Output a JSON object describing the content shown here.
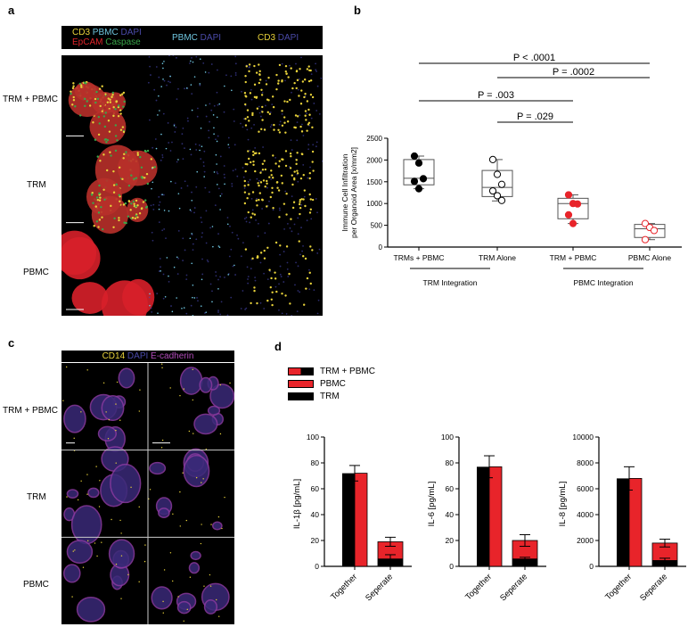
{
  "panels": {
    "a": {
      "letter": "a",
      "header": [
        {
          "parts": [
            {
              "text": "CD3",
              "color": "#e8d23a"
            },
            {
              "text": " PBMC",
              "color": "#6fc6e0"
            },
            {
              "text": " DAPI",
              "color": "#4a4aa8"
            }
          ],
          "line2": [
            {
              "text": "EpCAM",
              "color": "#e0242a"
            },
            {
              "text": " Caspase",
              "color": "#3aa64a"
            }
          ]
        },
        {
          "parts": [
            {
              "text": "PBMC",
              "color": "#6fc6e0"
            },
            {
              "text": " DAPI",
              "color": "#4a4aa8"
            }
          ]
        },
        {
          "parts": [
            {
              "text": "CD3",
              "color": "#e8d23a"
            },
            {
              "text": " DAPI",
              "color": "#4a4aa8"
            }
          ]
        }
      ],
      "rows": [
        "TRM + PBMC",
        "TRM",
        "PBMC"
      ]
    },
    "b": {
      "letter": "b",
      "group_labels": [
        "TRM Integration",
        "PBMC Integration"
      ],
      "pvalues": [
        "P < .0001",
        "P = .0002",
        "P = .003",
        "P = .029"
      ]
    },
    "c": {
      "letter": "c",
      "header": [
        {
          "text": "CD14",
          "color": "#e8d23a"
        },
        {
          "text": " DAPI",
          "color": "#4a4aa8"
        },
        {
          "text": " E-cadherin",
          "color": "#b04ab8"
        }
      ],
      "rows": [
        "TRM + PBMC",
        "TRM",
        "PBMC"
      ]
    },
    "d": {
      "letter": "d",
      "legend": [
        {
          "label": "TRM + PBMC",
          "swatch": "split"
        },
        {
          "label": "PBMC",
          "swatch": "#e8242a"
        },
        {
          "label": "TRM",
          "swatch": "#000000"
        }
      ]
    }
  },
  "colors": {
    "red": "#e8242a",
    "black": "#000000",
    "box": "#555555"
  },
  "chart_data": [
    {
      "type": "box",
      "panel": "b",
      "title": "",
      "ylabel": "Immune Cell Infiltration per Organoid Area [x/mm2]",
      "ylabel_lines": [
        "Immune Cell Infiltration",
        "per Organoid Area [x/mm2]"
      ],
      "ylim": [
        0,
        2500
      ],
      "yticks": [
        0,
        500,
        1000,
        1500,
        2000,
        2500
      ],
      "categories": [
        "TRMs + PBMC",
        "TRM Alone",
        "TRM + PBMC",
        "PBMC Alone"
      ],
      "groups": [
        {
          "label": "TRM Integration",
          "categories": [
            "TRMs + PBMC",
            "TRM Alone"
          ]
        },
        {
          "label": "PBMC Integration",
          "categories": [
            "TRM + PBMC",
            "PBMC Alone"
          ]
        }
      ],
      "series": [
        {
          "name": "TRMs + PBMC",
          "marker": "filled-black",
          "points": [
            2090,
            1930,
            1570,
            1510,
            1340
          ],
          "box": {
            "min": 1340,
            "q1": 1430,
            "median": 1580,
            "q3": 2010,
            "max": 2090
          }
        },
        {
          "name": "TRM Alone",
          "marker": "open-black",
          "points": [
            2010,
            1670,
            1440,
            1290,
            1180,
            1070
          ],
          "box": {
            "min": 1060,
            "q1": 1160,
            "median": 1370,
            "q3": 1760,
            "max": 2010
          }
        },
        {
          "name": "TRM + PBMC",
          "marker": "filled-red",
          "points": [
            1200,
            1000,
            990,
            740,
            540
          ],
          "box": {
            "min": 540,
            "q1": 650,
            "median": 1000,
            "q3": 1120,
            "max": 1200
          }
        },
        {
          "name": "PBMC Alone",
          "marker": "open-red",
          "points": [
            540,
            450,
            380,
            170
          ],
          "box": {
            "min": 170,
            "q1": 220,
            "median": 420,
            "q3": 520,
            "max": 540
          }
        }
      ],
      "comparisons": [
        {
          "from": "TRMs + PBMC",
          "to": "PBMC Alone",
          "label": "P < .0001"
        },
        {
          "from": "TRM Alone",
          "to": "PBMC Alone",
          "label": "P = .0002"
        },
        {
          "from": "TRMs + PBMC",
          "to": "TRM + PBMC",
          "label": "P = .003"
        },
        {
          "from": "TRM Alone",
          "to": "TRM + PBMC",
          "label": "P = .029"
        }
      ]
    },
    {
      "type": "bar",
      "panel": "d",
      "stacked": true,
      "ylabel": "IL-1β [pg/mL]",
      "ylim": [
        0,
        100
      ],
      "yticks": [
        0,
        20,
        40,
        60,
        80,
        100
      ],
      "categories": [
        "Together",
        "Seperate"
      ],
      "series": [
        {
          "name": "TRM + PBMC",
          "values": [
            72,
            null
          ],
          "error": [
            6,
            null
          ]
        },
        {
          "name": "TRM",
          "values": [
            null,
            6
          ],
          "error": [
            null,
            3
          ]
        },
        {
          "name": "PBMC",
          "values": [
            null,
            19
          ],
          "error": [
            null,
            3.5
          ]
        }
      ]
    },
    {
      "type": "bar",
      "panel": "d",
      "stacked": true,
      "ylabel": "IL-6 [pg/mL]",
      "ylim": [
        0,
        100
      ],
      "yticks": [
        0,
        20,
        40,
        60,
        80,
        100
      ],
      "categories": [
        "Together",
        "Seperate"
      ],
      "series": [
        {
          "name": "TRM + PBMC",
          "values": [
            77,
            null
          ],
          "error": [
            8.5,
            null
          ]
        },
        {
          "name": "TRM",
          "values": [
            null,
            6
          ],
          "error": [
            null,
            1
          ]
        },
        {
          "name": "PBMC",
          "values": [
            null,
            20
          ],
          "error": [
            null,
            4.5
          ]
        }
      ]
    },
    {
      "type": "bar",
      "panel": "d",
      "stacked": true,
      "ylabel": "IL-8 [pg/mL]",
      "ylim": [
        0,
        10000
      ],
      "yticks": [
        0,
        2000,
        4000,
        6000,
        8000,
        10000
      ],
      "categories": [
        "Together",
        "Seperate"
      ],
      "series": [
        {
          "name": "TRM + PBMC",
          "values": [
            6800,
            null
          ],
          "error": [
            900,
            null
          ]
        },
        {
          "name": "TRM",
          "values": [
            null,
            480
          ],
          "error": [
            null,
            150
          ]
        },
        {
          "name": "PBMC",
          "values": [
            null,
            1800
          ],
          "error": [
            null,
            300
          ]
        }
      ]
    }
  ]
}
